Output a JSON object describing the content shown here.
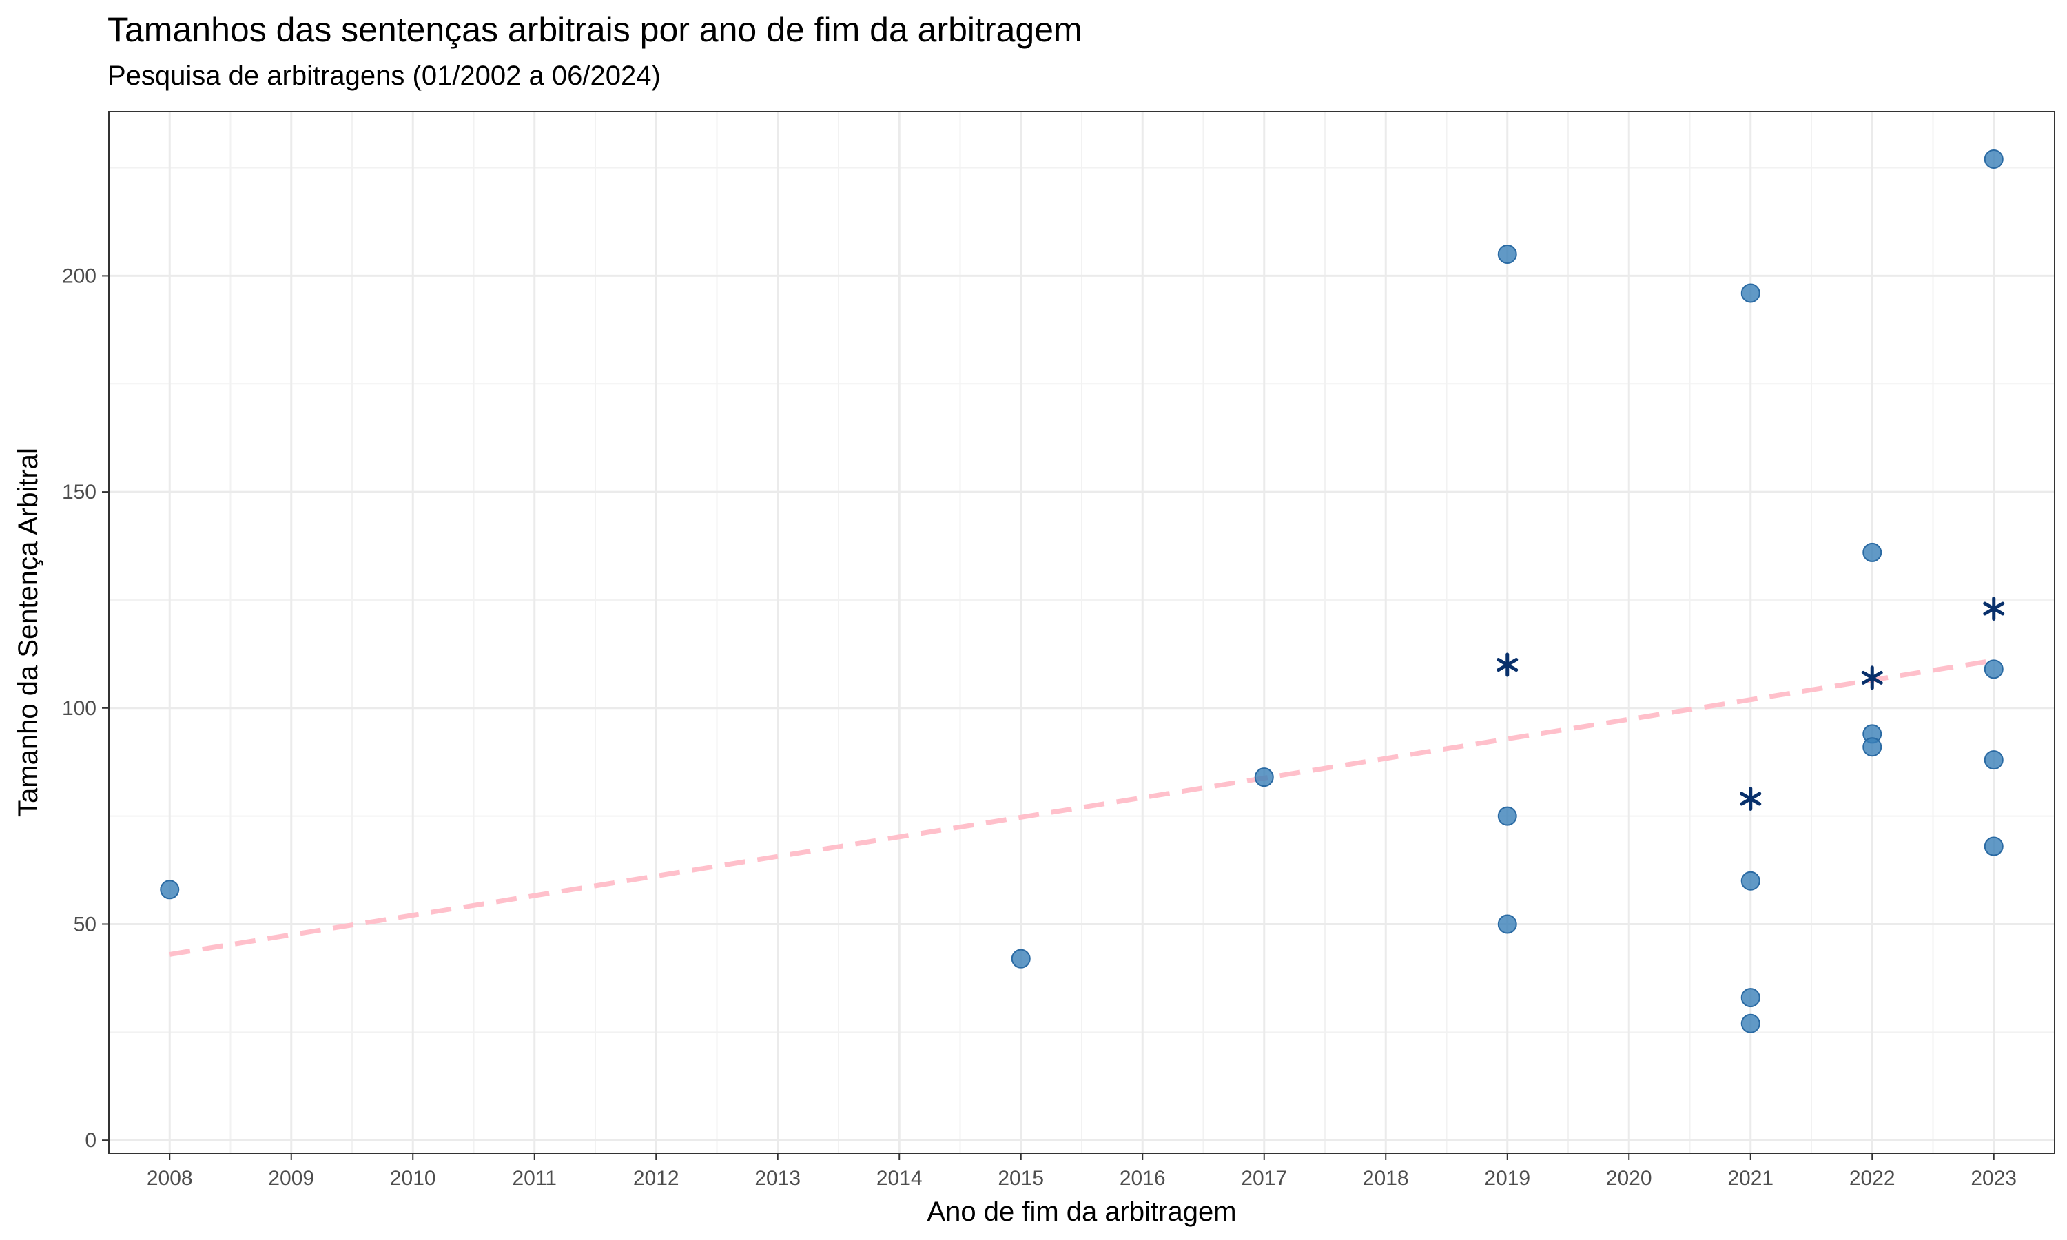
{
  "chart_data": {
    "type": "scatter",
    "title": "Tamanhos das sentenças arbitrais por ano de fim da arbitragem",
    "subtitle": "Pesquisa de arbitragens (01/2002 a 06/2024)",
    "xlabel": "Ano de fim da arbitragem",
    "ylabel": "Tamanho da Sentença Arbitral",
    "xlim": [
      2007.5,
      2023.5
    ],
    "ylim": [
      -3,
      238
    ],
    "x_ticks": [
      2008,
      2009,
      2010,
      2011,
      2012,
      2013,
      2014,
      2015,
      2016,
      2017,
      2018,
      2019,
      2020,
      2021,
      2022,
      2023
    ],
    "y_ticks": [
      0,
      50,
      100,
      150,
      200
    ],
    "grid": true,
    "series": [
      {
        "marker": "circle",
        "color": "#3a7fb8",
        "points": [
          {
            "x": 2008,
            "y": 58
          },
          {
            "x": 2015,
            "y": 42
          },
          {
            "x": 2017,
            "y": 84
          },
          {
            "x": 2019,
            "y": 205
          },
          {
            "x": 2019,
            "y": 75
          },
          {
            "x": 2019,
            "y": 50
          },
          {
            "x": 2021,
            "y": 196
          },
          {
            "x": 2021,
            "y": 60
          },
          {
            "x": 2021,
            "y": 33
          },
          {
            "x": 2021,
            "y": 27
          },
          {
            "x": 2022,
            "y": 136
          },
          {
            "x": 2022,
            "y": 94
          },
          {
            "x": 2022,
            "y": 91
          },
          {
            "x": 2023,
            "y": 227
          },
          {
            "x": 2023,
            "y": 109
          },
          {
            "x": 2023,
            "y": 88
          },
          {
            "x": 2023,
            "y": 68
          }
        ]
      },
      {
        "marker": "asterisk",
        "color": "#08306b",
        "points": [
          {
            "x": 2019,
            "y": 110
          },
          {
            "x": 2021,
            "y": 79
          },
          {
            "x": 2022,
            "y": 107
          },
          {
            "x": 2023,
            "y": 123
          }
        ]
      }
    ],
    "trend_line": {
      "style": "dashed",
      "color": "#ffc0cb",
      "points": [
        {
          "x": 2008,
          "y": 43
        },
        {
          "x": 2023,
          "y": 111
        }
      ]
    }
  }
}
